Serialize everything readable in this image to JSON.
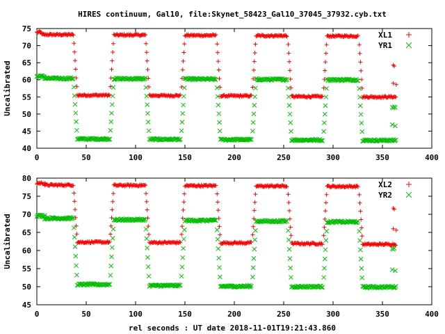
{
  "page": {
    "title": "HIRES continuum, Gal10, file:Skynet_58423_Gal10_37045_37932.cyb.txt",
    "xlabel": "rel seconds : UT date 2018-11-01T19:21:43.860"
  },
  "chart_data": [
    {
      "type": "scatter",
      "ylabel": "Uncalibrated",
      "xlim": [
        0,
        400
      ],
      "ylim": [
        40,
        75
      ],
      "xticks": [
        0,
        50,
        100,
        150,
        200,
        250,
        300,
        350,
        400
      ],
      "yticks": [
        40,
        45,
        50,
        55,
        60,
        65,
        70,
        75
      ],
      "legend_position": "top-right",
      "series": [
        {
          "name": "XL1",
          "marker": "plus",
          "color": "#ff0000",
          "segments": [
            {
              "x0": 0,
              "x1": 5,
              "y": 73.9,
              "jitter": 0.3
            },
            {
              "x0": 5,
              "x1": 37,
              "y": 73.2,
              "jitter": 0.25
            },
            {
              "x0": 41,
              "x1": 74,
              "y": 55.5,
              "jitter": 0.25
            },
            {
              "x0": 78,
              "x1": 110,
              "y": 73.1,
              "jitter": 0.25
            },
            {
              "x0": 114,
              "x1": 146,
              "y": 55.4,
              "jitter": 0.25
            },
            {
              "x0": 150,
              "x1": 182,
              "y": 73.0,
              "jitter": 0.25
            },
            {
              "x0": 186,
              "x1": 218,
              "y": 55.3,
              "jitter": 0.25
            },
            {
              "x0": 222,
              "x1": 254,
              "y": 72.9,
              "jitter": 0.25
            },
            {
              "x0": 258,
              "x1": 290,
              "y": 55.1,
              "jitter": 0.25
            },
            {
              "x0": 294,
              "x1": 326,
              "y": 72.8,
              "jitter": 0.25
            },
            {
              "x0": 330,
              "x1": 364,
              "y": 55.0,
              "jitter": 0.25
            }
          ],
          "transitions": [
            {
              "x0": 37,
              "x1": 41,
              "from": 73.2,
              "to": 55.5
            },
            {
              "x0": 74,
              "x1": 78,
              "from": 55.5,
              "to": 73.1
            },
            {
              "x0": 110,
              "x1": 114,
              "from": 73.1,
              "to": 55.4
            },
            {
              "x0": 146,
              "x1": 150,
              "from": 55.4,
              "to": 73.0
            },
            {
              "x0": 182,
              "x1": 186,
              "from": 73.0,
              "to": 55.3
            },
            {
              "x0": 218,
              "x1": 222,
              "from": 55.3,
              "to": 72.9
            },
            {
              "x0": 254,
              "x1": 258,
              "from": 72.9,
              "to": 55.1
            },
            {
              "x0": 290,
              "x1": 294,
              "from": 55.1,
              "to": 72.8
            },
            {
              "x0": 326,
              "x1": 330,
              "from": 72.8,
              "to": 55.0
            }
          ],
          "points": [
            {
              "x": 361,
              "y": 64.3
            },
            {
              "x": 362,
              "y": 64.0
            },
            {
              "x": 361,
              "y": 59.0
            },
            {
              "x": 364,
              "y": 58.6
            }
          ]
        },
        {
          "name": "YR1",
          "marker": "cross",
          "color": "#00c000",
          "segments": [
            {
              "x0": 0,
              "x1": 8,
              "y": 61.0,
              "jitter": 0.3
            },
            {
              "x0": 8,
              "x1": 37,
              "y": 60.4,
              "jitter": 0.25
            },
            {
              "x0": 41,
              "x1": 74,
              "y": 42.7,
              "jitter": 0.25
            },
            {
              "x0": 78,
              "x1": 110,
              "y": 60.3,
              "jitter": 0.25
            },
            {
              "x0": 114,
              "x1": 146,
              "y": 42.6,
              "jitter": 0.25
            },
            {
              "x0": 150,
              "x1": 182,
              "y": 60.2,
              "jitter": 0.25
            },
            {
              "x0": 186,
              "x1": 218,
              "y": 42.5,
              "jitter": 0.25
            },
            {
              "x0": 222,
              "x1": 254,
              "y": 60.1,
              "jitter": 0.25
            },
            {
              "x0": 258,
              "x1": 290,
              "y": 42.4,
              "jitter": 0.25
            },
            {
              "x0": 294,
              "x1": 326,
              "y": 60.0,
              "jitter": 0.25
            },
            {
              "x0": 330,
              "x1": 364,
              "y": 42.3,
              "jitter": 0.25
            }
          ],
          "transitions": [
            {
              "x0": 37,
              "x1": 41,
              "from": 60.4,
              "to": 42.7
            },
            {
              "x0": 74,
              "x1": 78,
              "from": 42.7,
              "to": 60.3
            },
            {
              "x0": 110,
              "x1": 114,
              "from": 60.3,
              "to": 42.6
            },
            {
              "x0": 146,
              "x1": 150,
              "from": 42.6,
              "to": 60.2
            },
            {
              "x0": 182,
              "x1": 186,
              "from": 60.2,
              "to": 42.5
            },
            {
              "x0": 218,
              "x1": 222,
              "from": 42.5,
              "to": 60.1
            },
            {
              "x0": 254,
              "x1": 258,
              "from": 60.1,
              "to": 42.4
            },
            {
              "x0": 290,
              "x1": 294,
              "from": 42.4,
              "to": 60.0
            },
            {
              "x0": 326,
              "x1": 330,
              "from": 60.0,
              "to": 42.3
            }
          ],
          "points": [
            {
              "x": 360,
              "y": 52.0
            },
            {
              "x": 361,
              "y": 51.8
            },
            {
              "x": 362,
              "y": 52.1
            },
            {
              "x": 363,
              "y": 51.9
            },
            {
              "x": 360,
              "y": 46.9
            },
            {
              "x": 363,
              "y": 46.5
            }
          ]
        }
      ]
    },
    {
      "type": "scatter",
      "ylabel": "Uncalibrated",
      "xlim": [
        0,
        400
      ],
      "ylim": [
        45,
        80
      ],
      "xticks": [
        0,
        50,
        100,
        150,
        200,
        250,
        300,
        350,
        400
      ],
      "yticks": [
        45,
        50,
        55,
        60,
        65,
        70,
        75,
        80
      ],
      "legend_position": "top-right",
      "series": [
        {
          "name": "XL2",
          "marker": "plus",
          "color": "#ff0000",
          "segments": [
            {
              "x0": 0,
              "x1": 8,
              "y": 78.6,
              "jitter": 0.3
            },
            {
              "x0": 8,
              "x1": 37,
              "y": 78.1,
              "jitter": 0.25
            },
            {
              "x0": 41,
              "x1": 74,
              "y": 62.3,
              "jitter": 0.25
            },
            {
              "x0": 78,
              "x1": 110,
              "y": 78.0,
              "jitter": 0.25
            },
            {
              "x0": 114,
              "x1": 146,
              "y": 62.2,
              "jitter": 0.25
            },
            {
              "x0": 150,
              "x1": 182,
              "y": 77.9,
              "jitter": 0.25
            },
            {
              "x0": 186,
              "x1": 218,
              "y": 62.1,
              "jitter": 0.25
            },
            {
              "x0": 222,
              "x1": 254,
              "y": 77.8,
              "jitter": 0.25
            },
            {
              "x0": 258,
              "x1": 290,
              "y": 61.9,
              "jitter": 0.25
            },
            {
              "x0": 294,
              "x1": 326,
              "y": 77.7,
              "jitter": 0.25
            },
            {
              "x0": 330,
              "x1": 364,
              "y": 61.7,
              "jitter": 0.25
            }
          ],
          "transitions": [
            {
              "x0": 37,
              "x1": 41,
              "from": 78.1,
              "to": 62.3
            },
            {
              "x0": 74,
              "x1": 78,
              "from": 62.3,
              "to": 78.0
            },
            {
              "x0": 110,
              "x1": 114,
              "from": 78.0,
              "to": 62.2
            },
            {
              "x0": 146,
              "x1": 150,
              "from": 62.2,
              "to": 77.9
            },
            {
              "x0": 182,
              "x1": 186,
              "from": 77.9,
              "to": 62.1
            },
            {
              "x0": 218,
              "x1": 222,
              "from": 62.1,
              "to": 77.8
            },
            {
              "x0": 254,
              "x1": 258,
              "from": 77.8,
              "to": 61.9
            },
            {
              "x0": 290,
              "x1": 294,
              "from": 61.9,
              "to": 77.7
            },
            {
              "x0": 326,
              "x1": 330,
              "from": 77.7,
              "to": 61.7
            }
          ],
          "points": [
            {
              "x": 361,
              "y": 71.7
            },
            {
              "x": 362,
              "y": 71.4
            },
            {
              "x": 361,
              "y": 66.0
            },
            {
              "x": 364,
              "y": 65.6
            }
          ]
        },
        {
          "name": "YR2",
          "marker": "cross",
          "color": "#00c000",
          "segments": [
            {
              "x0": 0,
              "x1": 8,
              "y": 69.6,
              "jitter": 0.3
            },
            {
              "x0": 8,
              "x1": 37,
              "y": 68.9,
              "jitter": 0.25
            },
            {
              "x0": 41,
              "x1": 74,
              "y": 50.6,
              "jitter": 0.25
            },
            {
              "x0": 78,
              "x1": 110,
              "y": 68.5,
              "jitter": 0.25
            },
            {
              "x0": 114,
              "x1": 146,
              "y": 50.3,
              "jitter": 0.25
            },
            {
              "x0": 150,
              "x1": 182,
              "y": 68.3,
              "jitter": 0.25
            },
            {
              "x0": 186,
              "x1": 218,
              "y": 50.1,
              "jitter": 0.25
            },
            {
              "x0": 222,
              "x1": 254,
              "y": 68.1,
              "jitter": 0.25
            },
            {
              "x0": 258,
              "x1": 290,
              "y": 50.0,
              "jitter": 0.25
            },
            {
              "x0": 294,
              "x1": 326,
              "y": 67.9,
              "jitter": 0.25
            },
            {
              "x0": 330,
              "x1": 364,
              "y": 49.9,
              "jitter": 0.25
            }
          ],
          "transitions": [
            {
              "x0": 37,
              "x1": 41,
              "from": 68.9,
              "to": 50.6
            },
            {
              "x0": 74,
              "x1": 78,
              "from": 50.6,
              "to": 68.5
            },
            {
              "x0": 110,
              "x1": 114,
              "from": 68.5,
              "to": 50.3
            },
            {
              "x0": 146,
              "x1": 150,
              "from": 50.3,
              "to": 68.3
            },
            {
              "x0": 182,
              "x1": 186,
              "from": 68.3,
              "to": 50.1
            },
            {
              "x0": 218,
              "x1": 222,
              "from": 50.1,
              "to": 68.1
            },
            {
              "x0": 254,
              "x1": 258,
              "from": 68.1,
              "to": 50.0
            },
            {
              "x0": 290,
              "x1": 294,
              "from": 50.0,
              "to": 67.9
            },
            {
              "x0": 326,
              "x1": 330,
              "from": 67.9,
              "to": 49.9
            }
          ],
          "points": [
            {
              "x": 360,
              "y": 60.5
            },
            {
              "x": 361,
              "y": 60.3
            },
            {
              "x": 362,
              "y": 60.6
            },
            {
              "x": 360,
              "y": 54.7
            },
            {
              "x": 363,
              "y": 54.4
            }
          ]
        }
      ]
    }
  ]
}
